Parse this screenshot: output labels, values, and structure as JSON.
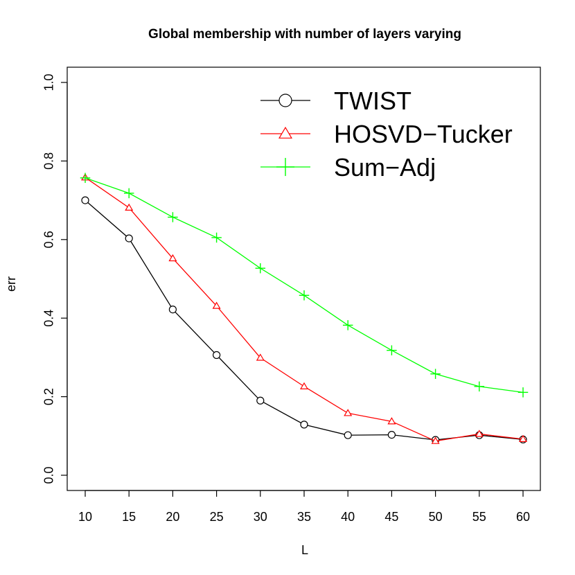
{
  "chart_data": {
    "type": "line",
    "title": "Global membership with number of layers varying",
    "xlabel": "L",
    "ylabel": "err",
    "x": [
      10,
      15,
      20,
      25,
      30,
      35,
      40,
      45,
      50,
      55,
      60
    ],
    "xlim": [
      10,
      60
    ],
    "ylim": [
      0.0,
      1.0
    ],
    "xticks": [
      "10",
      "15",
      "20",
      "25",
      "30",
      "35",
      "40",
      "45",
      "50",
      "55",
      "60"
    ],
    "yticks": [
      "0.0",
      "0.2",
      "0.4",
      "0.6",
      "0.8",
      "1.0"
    ],
    "grid": false,
    "legend_position": "top-right",
    "series": [
      {
        "name": "TWIST",
        "color": "#000000",
        "marker": "circle",
        "values": [
          0.7,
          0.603,
          0.422,
          0.306,
          0.19,
          0.129,
          0.102,
          0.103,
          0.09,
          0.102,
          0.091
        ]
      },
      {
        "name": "HOSVD−Tucker",
        "color": "#ff0000",
        "marker": "triangle",
        "values": [
          0.758,
          0.681,
          0.552,
          0.431,
          0.299,
          0.226,
          0.158,
          0.137,
          0.087,
          0.105,
          0.092
        ]
      },
      {
        "name": "Sum−Adj",
        "color": "#00ff00",
        "marker": "plus",
        "values": [
          0.757,
          0.718,
          0.657,
          0.605,
          0.527,
          0.458,
          0.382,
          0.318,
          0.258,
          0.226,
          0.211
        ]
      }
    ]
  }
}
